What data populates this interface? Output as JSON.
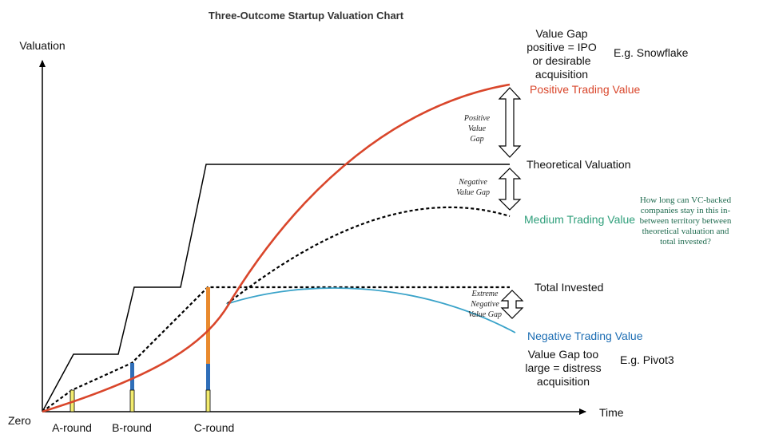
{
  "title": "Three-Outcome Startup Valuation Chart",
  "axes": {
    "y_label": "Valuation",
    "x_label": "Time",
    "origin_label": "Zero"
  },
  "rounds": [
    "A-round",
    "B-round",
    "C-round"
  ],
  "series_labels": {
    "positive": "Positive Trading Value",
    "theoretical": "Theoretical Valuation",
    "medium": "Medium Trading Value",
    "total_invested": "Total Invested",
    "negative": "Negative Trading Value"
  },
  "gap_labels": {
    "positive": [
      "Positive",
      "Value",
      "Gap"
    ],
    "negative": [
      "Negative",
      "Value Gap"
    ],
    "extreme": [
      "Extreme",
      "Negative",
      "Value Gap"
    ]
  },
  "notes": {
    "top": [
      "Value Gap",
      "positive = IPO",
      "or desirable",
      "acquisition"
    ],
    "top_example": "E.g. Snowflake",
    "bottom": [
      "Value Gap too",
      "large = distress",
      "acquisition"
    ],
    "bottom_example": "E.g. Pivot3",
    "question": [
      "How long can VC-backed",
      "companies stay in this in-",
      "between territory between",
      "theoretical valuation and",
      "total invested?"
    ]
  },
  "colors": {
    "positive": "#d9462b",
    "medium": "#2e9e7a",
    "negative": "#1c6db3",
    "negative_line": "#3aa3c9",
    "question": "#1f6b4f",
    "bar_yellow": "#f3ec6e",
    "bar_orange": "#e98a2e",
    "bar_blue": "#2f6eb8"
  }
}
